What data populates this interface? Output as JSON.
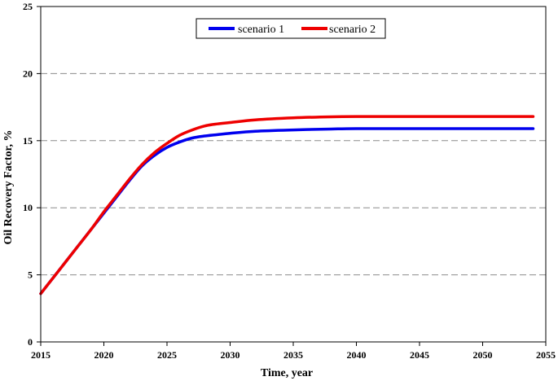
{
  "chart_data": {
    "type": "line",
    "xlabel": "Time, year",
    "ylabel": "Oil Recovery Factor, %",
    "xlim": [
      2015,
      2055
    ],
    "ylim": [
      0,
      25
    ],
    "xticks": [
      "2015",
      "2020",
      "2025",
      "2030",
      "2035",
      "2040",
      "2045",
      "2050",
      "2055"
    ],
    "yticks": [
      "0",
      "5",
      "10",
      "15",
      "20",
      "25"
    ],
    "grid": "horizontal dashed",
    "legend_position": "top-center",
    "series": [
      {
        "name": "scenario 1",
        "color": "#0000ee",
        "x": [
          2015,
          2016,
          2017,
          2018,
          2019,
          2020,
          2021,
          2022,
          2023,
          2024,
          2025,
          2026,
          2027,
          2028,
          2029,
          2030,
          2032,
          2035,
          2038,
          2040,
          2045,
          2050,
          2054
        ],
        "y": [
          3.6,
          4.8,
          6.0,
          7.2,
          8.4,
          9.6,
          10.8,
          12.0,
          13.1,
          13.9,
          14.5,
          14.9,
          15.2,
          15.35,
          15.45,
          15.55,
          15.7,
          15.8,
          15.87,
          15.9,
          15.9,
          15.9,
          15.9
        ]
      },
      {
        "name": "scenario 2",
        "color": "#ee0000",
        "x": [
          2015,
          2016,
          2017,
          2018,
          2019,
          2020,
          2021,
          2022,
          2023,
          2024,
          2025,
          2026,
          2027,
          2028,
          2029,
          2030,
          2032,
          2035,
          2038,
          2040,
          2045,
          2050,
          2054
        ],
        "y": [
          3.6,
          4.8,
          6.0,
          7.2,
          8.4,
          9.7,
          10.9,
          12.1,
          13.2,
          14.1,
          14.8,
          15.4,
          15.8,
          16.1,
          16.25,
          16.35,
          16.55,
          16.7,
          16.78,
          16.8,
          16.8,
          16.8,
          16.8
        ]
      }
    ]
  }
}
